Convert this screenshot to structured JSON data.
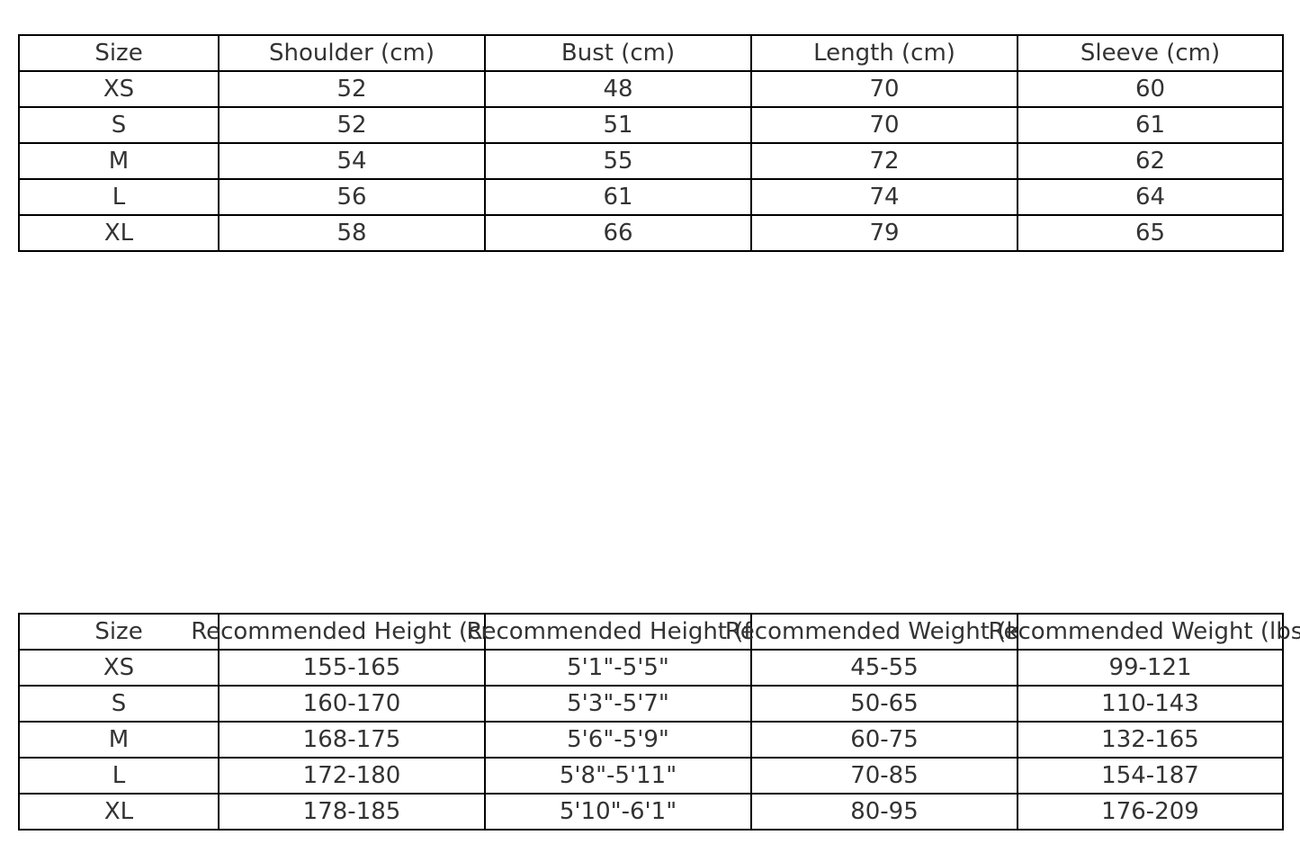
{
  "measurements_table": {
    "headers": [
      "Size",
      "Shoulder (cm)",
      "Bust (cm)",
      "Length (cm)",
      "Sleeve (cm)"
    ],
    "rows": [
      [
        "XS",
        "52",
        "48",
        "70",
        "60"
      ],
      [
        "S",
        "52",
        "51",
        "70",
        "61"
      ],
      [
        "M",
        "54",
        "55",
        "72",
        "62"
      ],
      [
        "L",
        "56",
        "61",
        "74",
        "64"
      ],
      [
        "XL",
        "58",
        "66",
        "79",
        "65"
      ]
    ]
  },
  "recommendation_table": {
    "headers": [
      "Size",
      "Recommended Height (cm)",
      "Recommended Height (ft)",
      "Recommended Weight (kg)",
      "Recommended Weight (lbs)"
    ],
    "rows": [
      [
        "XS",
        "155-165",
        "5'1\"-5'5\"",
        "45-55",
        "99-121"
      ],
      [
        "S",
        "160-170",
        "5'3\"-5'7\"",
        "50-65",
        "110-143"
      ],
      [
        "M",
        "168-175",
        "5'6\"-5'9\"",
        "60-75",
        "132-165"
      ],
      [
        "L",
        "172-180",
        "5'8\"-5'11\"",
        "70-85",
        "154-187"
      ],
      [
        "XL",
        "178-185",
        "5'10\"-6'1\"",
        "80-95",
        "176-209"
      ]
    ]
  }
}
